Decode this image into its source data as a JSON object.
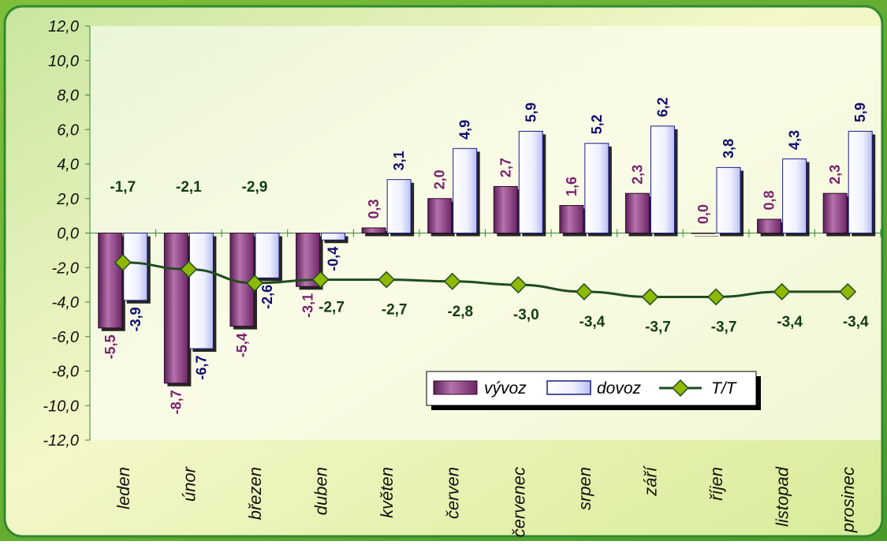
{
  "colors": {
    "frame_green": "#2f8a2f",
    "plot_bg": "#ffffff",
    "export_bar": "#8e3a84",
    "import_bar": "#ffffff",
    "import_border": "#1a1a8c",
    "tt_line": "#1e4d1e",
    "tt_marker": "#8fb800",
    "export_label": "#7a1f6e",
    "import_label": "#0c0c6e",
    "tt_label": "#123d12"
  },
  "chart_data": {
    "type": "bar",
    "categories": [
      "leden",
      "únor",
      "březen",
      "duben",
      "květen",
      "červen",
      "červenec",
      "srpen",
      "září",
      "říjen",
      "listopad",
      "prosinec"
    ],
    "series": [
      {
        "name": "vývoz",
        "type": "bar",
        "values": [
          -5.5,
          -8.7,
          -5.4,
          -3.1,
          0.3,
          2.0,
          2.7,
          1.6,
          2.3,
          0.0,
          0.8,
          2.3
        ],
        "labels": [
          "-5,5",
          "-8,7",
          "-5,4",
          "-3,1",
          "0,3",
          "2,0",
          "2,7",
          "1,6",
          "2,3",
          "0,0",
          "0,8",
          "2,3"
        ]
      },
      {
        "name": "dovoz",
        "type": "bar",
        "values": [
          -3.9,
          -6.7,
          -2.6,
          -0.4,
          3.1,
          4.9,
          5.9,
          5.2,
          6.2,
          3.8,
          4.3,
          5.9
        ],
        "labels": [
          "-3,9",
          "-6,7",
          "-2,6",
          "-0,4",
          "3,1",
          "4,9",
          "5,9",
          "5,2",
          "6,2",
          "3,8",
          "4,3",
          "5,9"
        ]
      },
      {
        "name": "T/T",
        "type": "line",
        "values": [
          -1.7,
          -2.1,
          -2.9,
          -2.7,
          -2.7,
          -2.8,
          -3.0,
          -3.4,
          -3.7,
          -3.7,
          -3.4,
          -3.4
        ],
        "labels": [
          "-1,7",
          "-2,1",
          "-2,9",
          "-2,7",
          "-2,7",
          "-2,8",
          "-3,0",
          "-3,4",
          "-3,7",
          "-3,7",
          "-3,4",
          "-3,4"
        ]
      }
    ],
    "ylim": [
      -12,
      12
    ],
    "yticks": [
      12,
      10,
      8,
      6,
      4,
      2,
      0,
      -2,
      -4,
      -6,
      -8,
      -10,
      -12
    ],
    "ytick_labels": [
      "12,0",
      "10,0",
      "8,0",
      "6,0",
      "4,0",
      "2,0",
      "0,0",
      "-2,0",
      "-4,0",
      "-6,0",
      "-8,0",
      "-10,0",
      "-12,0"
    ],
    "grid": false,
    "legend": {
      "position": "bottom-right",
      "entries": [
        "vývoz",
        "dovoz",
        "T/T"
      ]
    }
  }
}
